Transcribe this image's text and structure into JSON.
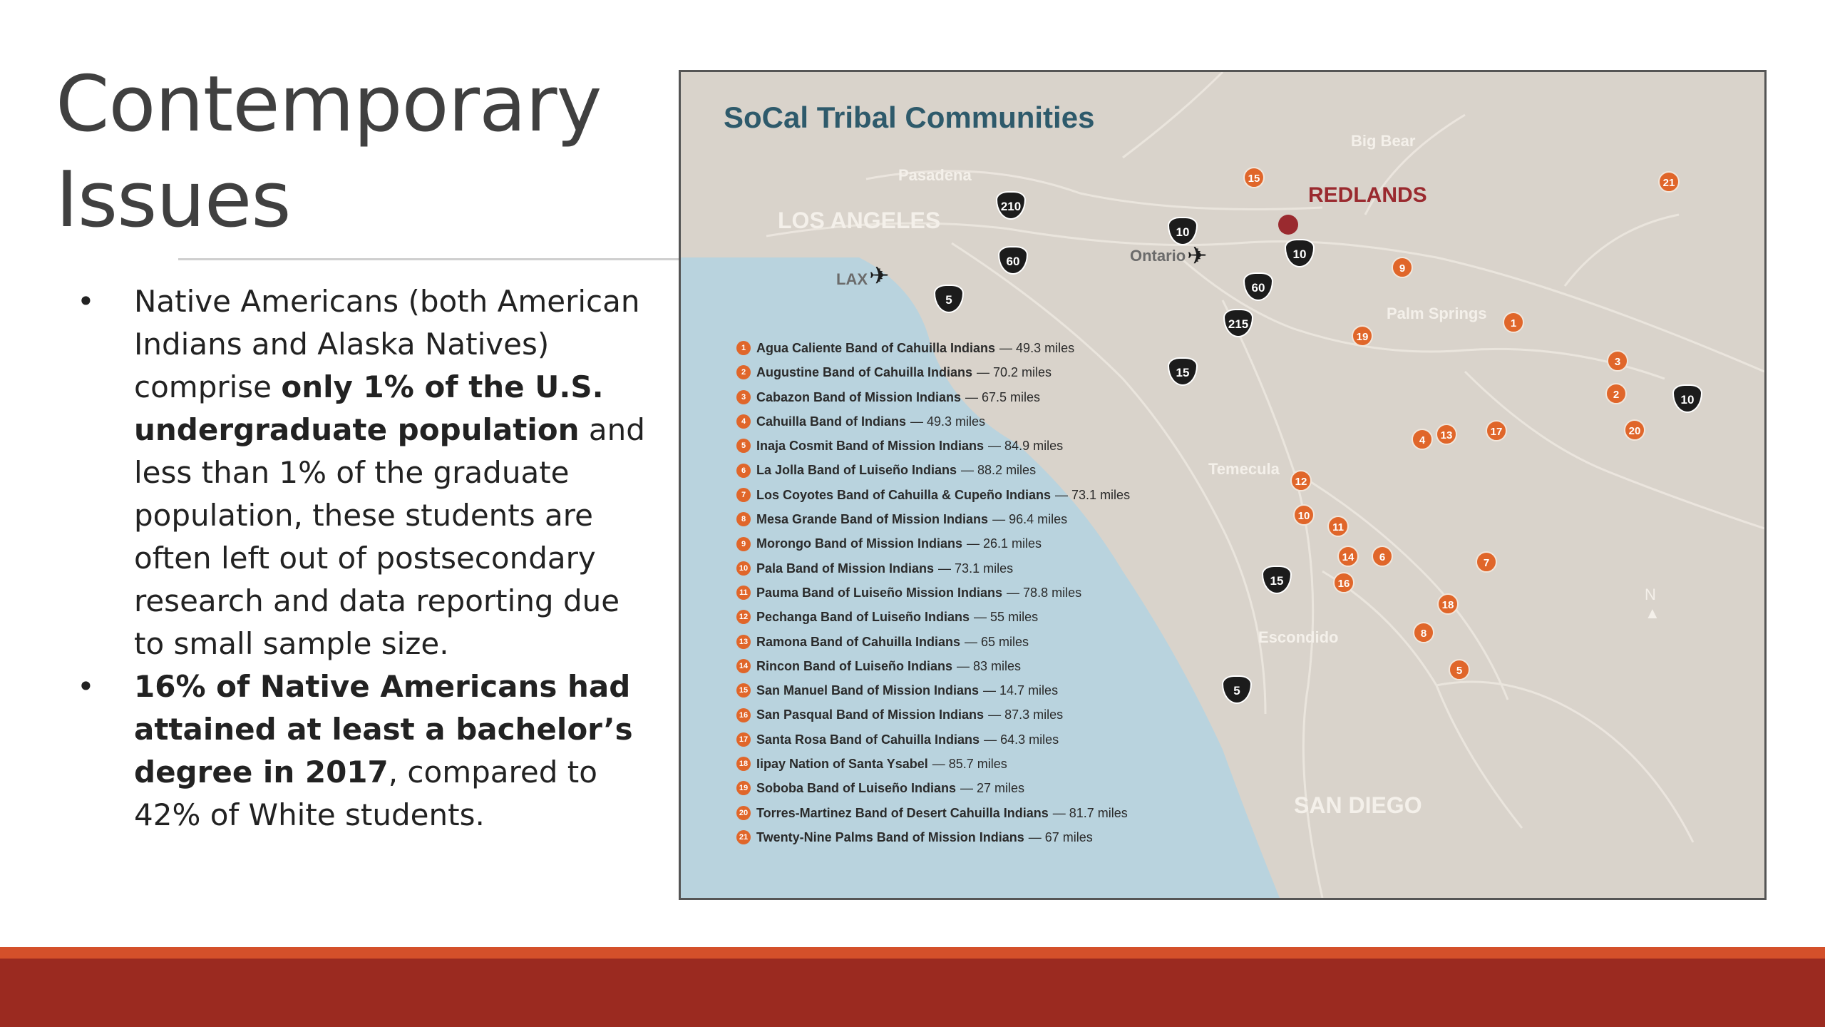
{
  "slide": {
    "title_line1": "Contemporary",
    "title_line2": "Issues",
    "bullet1": {
      "pre": "Native Americans (both American Indians and Alaska Natives) comprise ",
      "bold": "only 1% of the U.S. undergraduate population",
      "post": " and less than 1% of the graduate population, these students are often left out of postsecondary research and data reporting due to small sample size."
    },
    "bullet2": {
      "bold": "16% of Native Americans had attained at least a bachelor’s degree in 2017",
      "post": ", compared to 42% of White students."
    }
  },
  "map": {
    "title": "SoCal Tribal Communities",
    "places": {
      "los_angeles": "LOS ANGELES",
      "pasadena": "Pasadena",
      "big_bear": "Big Bear",
      "redlands": "REDLANDS",
      "ontario": "Ontario",
      "lax": "LAX",
      "palm_springs": "Palm Springs",
      "temecula": "Temecula",
      "escondido": "Escondido",
      "san_diego": "SAN DIEGO",
      "north": "N"
    },
    "highways": [
      "210",
      "10",
      "60",
      "5",
      "10",
      "60",
      "215",
      "15",
      "10",
      "15",
      "5"
    ],
    "markers": [
      "15",
      "21",
      "9",
      "1",
      "19",
      "3",
      "2",
      "20",
      "17",
      "4",
      "13",
      "12",
      "10",
      "11",
      "14",
      "6",
      "7",
      "16",
      "18",
      "8",
      "5"
    ],
    "legend": [
      {
        "n": "1",
        "name": "Agua Caliente Band of Cahuilla Indians",
        "miles": "— 49.3 miles"
      },
      {
        "n": "2",
        "name": "Augustine Band of Cahuilla Indians",
        "miles": "— 70.2 miles"
      },
      {
        "n": "3",
        "name": "Cabazon Band of Mission Indians",
        "miles": "— 67.5 miles"
      },
      {
        "n": "4",
        "name": "Cahuilla Band of Indians",
        "miles": "— 49.3 miles"
      },
      {
        "n": "5",
        "name": "Inaja Cosmit Band of Mission Indians",
        "miles": "— 84.9 miles"
      },
      {
        "n": "6",
        "name": "La Jolla Band of Luiseño Indians",
        "miles": "— 88.2 miles"
      },
      {
        "n": "7",
        "name": "Los Coyotes Band of Cahuilla & Cupeño Indians",
        "miles": "— 73.1 miles"
      },
      {
        "n": "8",
        "name": "Mesa Grande Band of Mission Indians",
        "miles": "— 96.4 miles"
      },
      {
        "n": "9",
        "name": "Morongo Band of Mission Indians",
        "miles": "— 26.1 miles"
      },
      {
        "n": "10",
        "name": "Pala Band of Mission Indians",
        "miles": "— 73.1 miles"
      },
      {
        "n": "11",
        "name": "Pauma Band of Luiseño Mission Indians",
        "miles": "— 78.8 miles"
      },
      {
        "n": "12",
        "name": "Pechanga Band of Luiseño Indians",
        "miles": "— 55 miles"
      },
      {
        "n": "13",
        "name": "Ramona Band of Cahuilla Indians",
        "miles": "— 65 miles"
      },
      {
        "n": "14",
        "name": "Rincon Band of Luiseño Indians",
        "miles": "— 83 miles"
      },
      {
        "n": "15",
        "name": "San Manuel Band of Mission Indians",
        "miles": "— 14.7 miles"
      },
      {
        "n": "16",
        "name": "San Pasqual Band of Mission Indians",
        "miles": "— 87.3 miles"
      },
      {
        "n": "17",
        "name": "Santa Rosa Band of Cahuilla Indians",
        "miles": "— 64.3 miles"
      },
      {
        "n": "18",
        "name": "Iipay Nation of Santa Ysabel",
        "miles": "— 85.7 miles"
      },
      {
        "n": "19",
        "name": "Soboba Band of Luiseño Indians",
        "miles": "— 27 miles"
      },
      {
        "n": "20",
        "name": "Torres-Martinez Band of Desert Cahuilla Indians",
        "miles": "— 81.7 miles"
      },
      {
        "n": "21",
        "name": "Twenty-Nine Palms Band of Mission Indians",
        "miles": "— 67 miles"
      }
    ],
    "colors": {
      "land": "#d9d3cb",
      "ocean": "#b9d3de",
      "marker": "#e0662a",
      "redlands": "#9a2a2f"
    }
  }
}
